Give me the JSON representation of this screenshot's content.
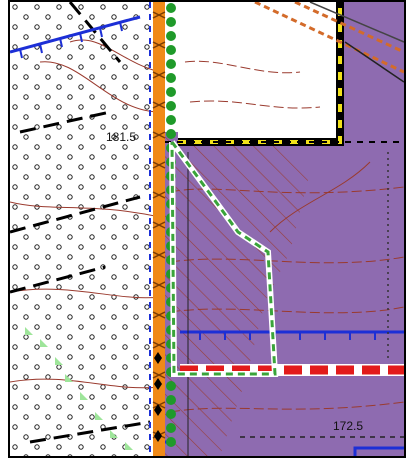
{
  "map": {
    "spot_heights": [
      {
        "id": "west",
        "text": "181.5"
      },
      {
        "id": "southeast",
        "text": "172.5"
      }
    ],
    "colors": {
      "zone_purple": "#8e6bb0",
      "contour_brown": "#9a3a2e",
      "road_orange": "#f08a18",
      "hedge_green": "#1f9a2a",
      "boundary_blue": "#1c2fd6",
      "yellow_dash": "#f2e21a",
      "red_dash": "#e21b1b",
      "green_dashed_outline": "#3aa43a",
      "light_green_triangles": "#9ee59a"
    }
  }
}
